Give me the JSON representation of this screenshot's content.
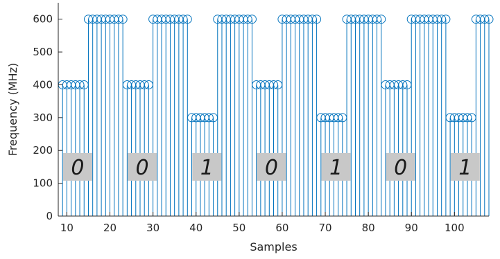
{
  "chart_data": {
    "type": "stem",
    "title": "",
    "xlabel": "Samples",
    "ylabel": "Frequency (MHz)",
    "xlim": [
      8,
      108
    ],
    "ylim": [
      0,
      650
    ],
    "xticks": [
      "10",
      "20",
      "30",
      "40",
      "50",
      "60",
      "70",
      "80",
      "90",
      "100"
    ],
    "yticks": [
      "0",
      "100",
      "200",
      "300",
      "400",
      "500",
      "600"
    ],
    "grid": false,
    "series_color": "#0072BD",
    "label_box_color": "#C8C8C8",
    "segments": [
      {
        "x_start": 9,
        "x_end": 14,
        "y": 400
      },
      {
        "x_start": 15,
        "x_end": 23,
        "y": 600
      },
      {
        "x_start": 24,
        "x_end": 29,
        "y": 400
      },
      {
        "x_start": 30,
        "x_end": 38,
        "y": 600
      },
      {
        "x_start": 39,
        "x_end": 44,
        "y": 300
      },
      {
        "x_start": 45,
        "x_end": 53,
        "y": 600
      },
      {
        "x_start": 54,
        "x_end": 59,
        "y": 400
      },
      {
        "x_start": 60,
        "x_end": 68,
        "y": 600
      },
      {
        "x_start": 69,
        "x_end": 74,
        "y": 300
      },
      {
        "x_start": 75,
        "x_end": 83,
        "y": 600
      },
      {
        "x_start": 84,
        "x_end": 89,
        "y": 400
      },
      {
        "x_start": 90,
        "x_end": 98,
        "y": 600
      },
      {
        "x_start": 99,
        "x_end": 104,
        "y": 300
      },
      {
        "x_start": 105,
        "x_end": 108,
        "y": 600
      }
    ],
    "annotations": [
      {
        "text": "0",
        "x": 12.5,
        "y": 150
      },
      {
        "text": "0",
        "x": 27.5,
        "y": 150
      },
      {
        "text": "1",
        "x": 42.5,
        "y": 150
      },
      {
        "text": "0",
        "x": 57.5,
        "y": 150
      },
      {
        "text": "1",
        "x": 72.5,
        "y": 150
      },
      {
        "text": "0",
        "x": 87.5,
        "y": 150
      },
      {
        "text": "1",
        "x": 102.5,
        "y": 150
      }
    ]
  }
}
